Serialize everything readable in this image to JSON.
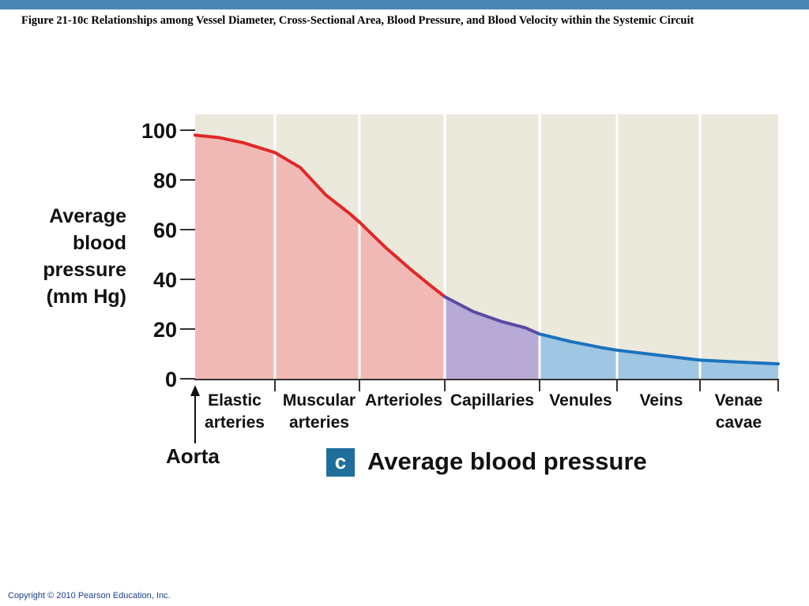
{
  "header": {
    "figure_title": "Figure 21-10c  Relationships among Vessel Diameter, Cross-Sectional Area, Blood Pressure, and Blood Velocity within the Systemic Circuit",
    "bar_color": "#4a86b5"
  },
  "footer": {
    "copyright": "Copyright © 2010 Pearson Education, Inc."
  },
  "caption": {
    "badge": "c",
    "text": "Average blood pressure",
    "badge_color": "#1f6e9c"
  },
  "colors": {
    "plot_bg": "#ebe8dc",
    "arterial_fill": "#f1b9b6",
    "arterial_line": "#e02828",
    "capillary_fill": "#b8aad6",
    "capillary_line": "#5a4aa3",
    "venous_fill": "#9fc6e2",
    "venous_line": "#1b73bd"
  },
  "chart_data": {
    "type": "area",
    "title": "Average blood pressure",
    "ylabel": [
      "Average",
      "blood",
      "pressure",
      "(mm Hg)"
    ],
    "xlabel": "",
    "ylim": [
      0,
      100
    ],
    "yticks": [
      0,
      20,
      40,
      60,
      80,
      100
    ],
    "grid": "vertical dividers between vessel segments",
    "categories": [
      {
        "lines": [
          "Elastic",
          "arteries"
        ],
        "region": "arterial"
      },
      {
        "lines": [
          "Muscular",
          "arteries"
        ],
        "region": "arterial"
      },
      {
        "lines": [
          "Arterioles"
        ],
        "region": "arterial"
      },
      {
        "lines": [
          "Capillaries"
        ],
        "region": "capillary"
      },
      {
        "lines": [
          "Venules"
        ],
        "region": "venous"
      },
      {
        "lines": [
          "Veins"
        ],
        "region": "venous"
      },
      {
        "lines": [
          "Venae",
          "cavae"
        ],
        "region": "venous"
      }
    ],
    "series": [
      {
        "name": "Average blood pressure (mm Hg)",
        "points": [
          [
            0.0,
            98
          ],
          [
            0.3,
            97
          ],
          [
            0.6,
            95
          ],
          [
            0.9,
            92
          ],
          [
            1.0,
            91
          ],
          [
            1.3,
            85
          ],
          [
            1.6,
            74
          ],
          [
            1.9,
            66
          ],
          [
            2.0,
            63
          ],
          [
            2.3,
            53
          ],
          [
            2.6,
            44
          ],
          [
            2.85,
            37
          ],
          [
            3.0,
            33
          ],
          [
            3.3,
            27
          ],
          [
            3.6,
            23
          ],
          [
            3.85,
            20.5
          ],
          [
            4.0,
            18
          ],
          [
            4.4,
            15
          ],
          [
            4.8,
            12.5
          ],
          [
            5.0,
            11.5
          ],
          [
            5.5,
            9.5
          ],
          [
            6.0,
            7.5
          ],
          [
            6.5,
            6.7
          ],
          [
            7.0,
            6
          ]
        ]
      }
    ],
    "annotations": [
      {
        "text": "Aorta",
        "at_x": 0,
        "arrow": "up"
      }
    ]
  }
}
